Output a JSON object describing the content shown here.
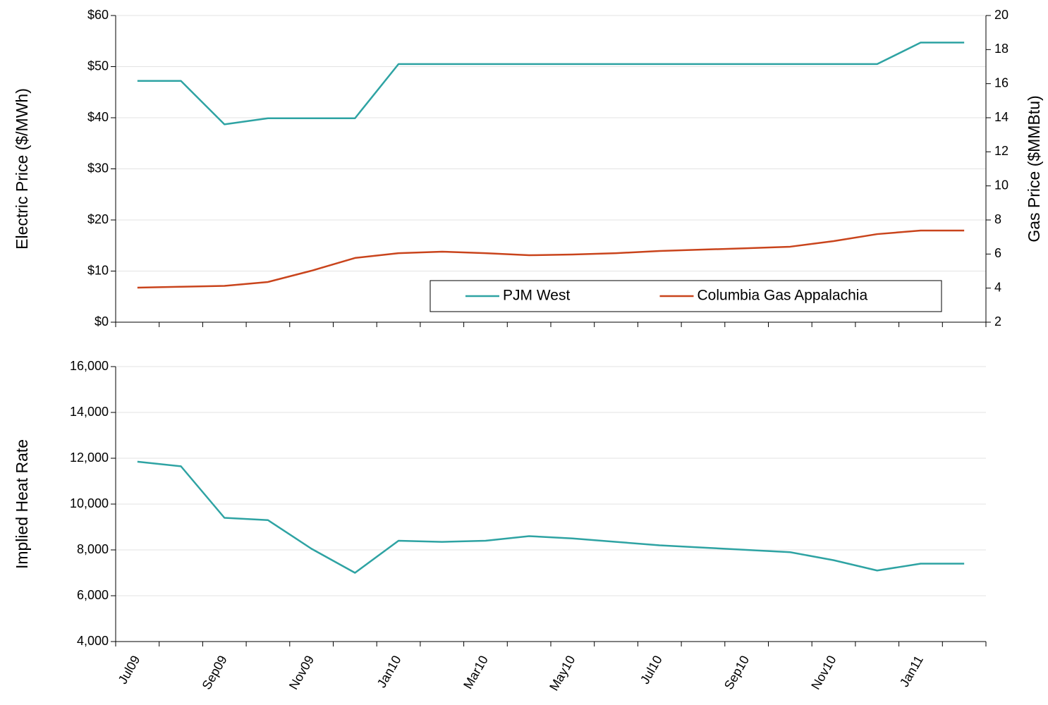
{
  "chart_data": [
    {
      "type": "line",
      "y_label": "Electric Price ($/MWh)",
      "y2_label": "Gas Price ($MMBtu)",
      "series": [
        {
          "name": "PJM West",
          "color": "#2ea3a3",
          "values": [
            47.2,
            47.2,
            38.7,
            39.9,
            39.9,
            39.9,
            50.5,
            50.5,
            50.5,
            50.5,
            50.5,
            50.5,
            50.5,
            50.5,
            50.5,
            50.5,
            50.5,
            50.5,
            54.7,
            54.7
          ]
        },
        {
          "name": "Columbia Gas Appalachia",
          "color": "#c9441c",
          "axis": "y2",
          "values": [
            4.03,
            4.08,
            4.13,
            4.36,
            5.02,
            5.77,
            6.05,
            6.14,
            6.05,
            5.93,
            5.97,
            6.05,
            6.18,
            6.26,
            6.34,
            6.43,
            6.76,
            7.17,
            7.38,
            7.38
          ]
        }
      ],
      "ylim": [
        0,
        60
      ],
      "yticks": [
        {
          "value": 0,
          "label": "$0"
        },
        {
          "value": 10,
          "label": "$10"
        },
        {
          "value": 20,
          "label": "$20"
        },
        {
          "value": 30,
          "label": "$30"
        },
        {
          "value": 40,
          "label": "$40"
        },
        {
          "value": 50,
          "label": "$50"
        },
        {
          "value": 60,
          "label": "$60"
        }
      ],
      "y2lim": [
        2,
        20
      ],
      "y2ticks": [
        2,
        4,
        6,
        8,
        10,
        12,
        14,
        16,
        18,
        20
      ],
      "grid": true,
      "legend": "lower right"
    },
    {
      "type": "line",
      "y_label": "Implied Heat Rate",
      "categories": [
        "Jul09",
        null,
        "Sep09",
        null,
        "Nov09",
        null,
        "Jan10",
        null,
        "Mar10",
        null,
        "May10",
        null,
        "Jul10",
        null,
        "Sep10",
        null,
        "Nov10",
        null,
        "Jan11",
        null
      ],
      "series": [
        {
          "color": "#2ea3a3",
          "values": [
            11850,
            11650,
            9400,
            9300,
            8050,
            7000,
            8400,
            8350,
            8400,
            8600,
            8500,
            8350,
            8200,
            8100,
            8000,
            7900,
            7550,
            7100,
            7400,
            7400
          ]
        }
      ],
      "ylim": [
        4000,
        16000
      ],
      "yticks": [
        {
          "value": 4000,
          "label": "4,000"
        },
        {
          "value": 6000,
          "label": "6,000"
        },
        {
          "value": 8000,
          "label": "8,000"
        },
        {
          "value": 10000,
          "label": "10,000"
        },
        {
          "value": 12000,
          "label": "12,000"
        },
        {
          "value": 14000,
          "label": "14,000"
        },
        {
          "value": 16000,
          "label": "16,000"
        }
      ],
      "grid": true
    }
  ]
}
